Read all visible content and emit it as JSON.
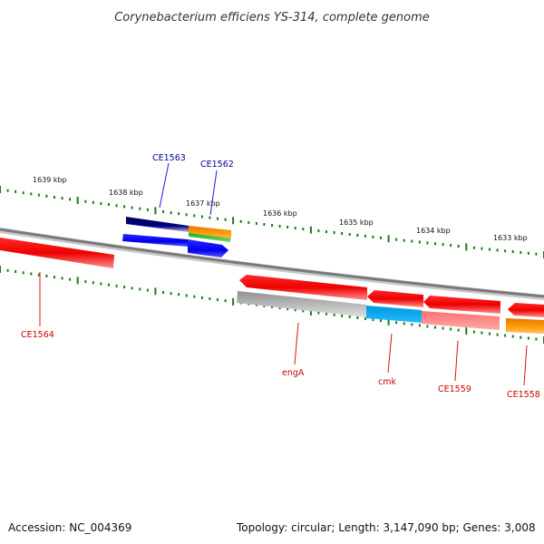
{
  "title": "Corynebacterium efficiens YS-314, complete genome",
  "footer": {
    "accession": "Accession: NC_004369",
    "summary": "Topology: circular; Length: 3,147,090 bp; Genes: 3,008"
  },
  "scale_labels": [
    "1639 kbp",
    "1638 kbp",
    "1637 kbp",
    "1636 kbp",
    "1635 kbp",
    "1634 kbp",
    "1633 kbp"
  ],
  "genes": [
    {
      "name": "CE1563",
      "strand": "forward",
      "color": "#000099"
    },
    {
      "name": "CE1562",
      "strand": "forward",
      "color": "#000099"
    },
    {
      "name": "CE1564",
      "strand": "reverse",
      "color": "#cc0000"
    },
    {
      "name": "engA",
      "strand": "reverse",
      "color": "#cc0000"
    },
    {
      "name": "cmk",
      "strand": "reverse",
      "color": "#cc0000"
    },
    {
      "name": "CE1559",
      "strand": "reverse",
      "color": "#cc0000"
    },
    {
      "name": "CE1558",
      "strand": "reverse",
      "color": "#cc0000"
    }
  ],
  "colors": {
    "backbone": "#808080",
    "ticks": "#1a7a1a",
    "forward_label": "#000099",
    "reverse_label": "#cc0000",
    "red_feature": "#ee0000",
    "blue_feature": "#0000ee",
    "navy_feature": "#000066",
    "orange_feature": "#ff9900",
    "green_feature": "#33cc33",
    "cyan_feature": "#00aaee",
    "pink_feature": "#ff8080",
    "gray_feature": "#b0b0b0"
  }
}
